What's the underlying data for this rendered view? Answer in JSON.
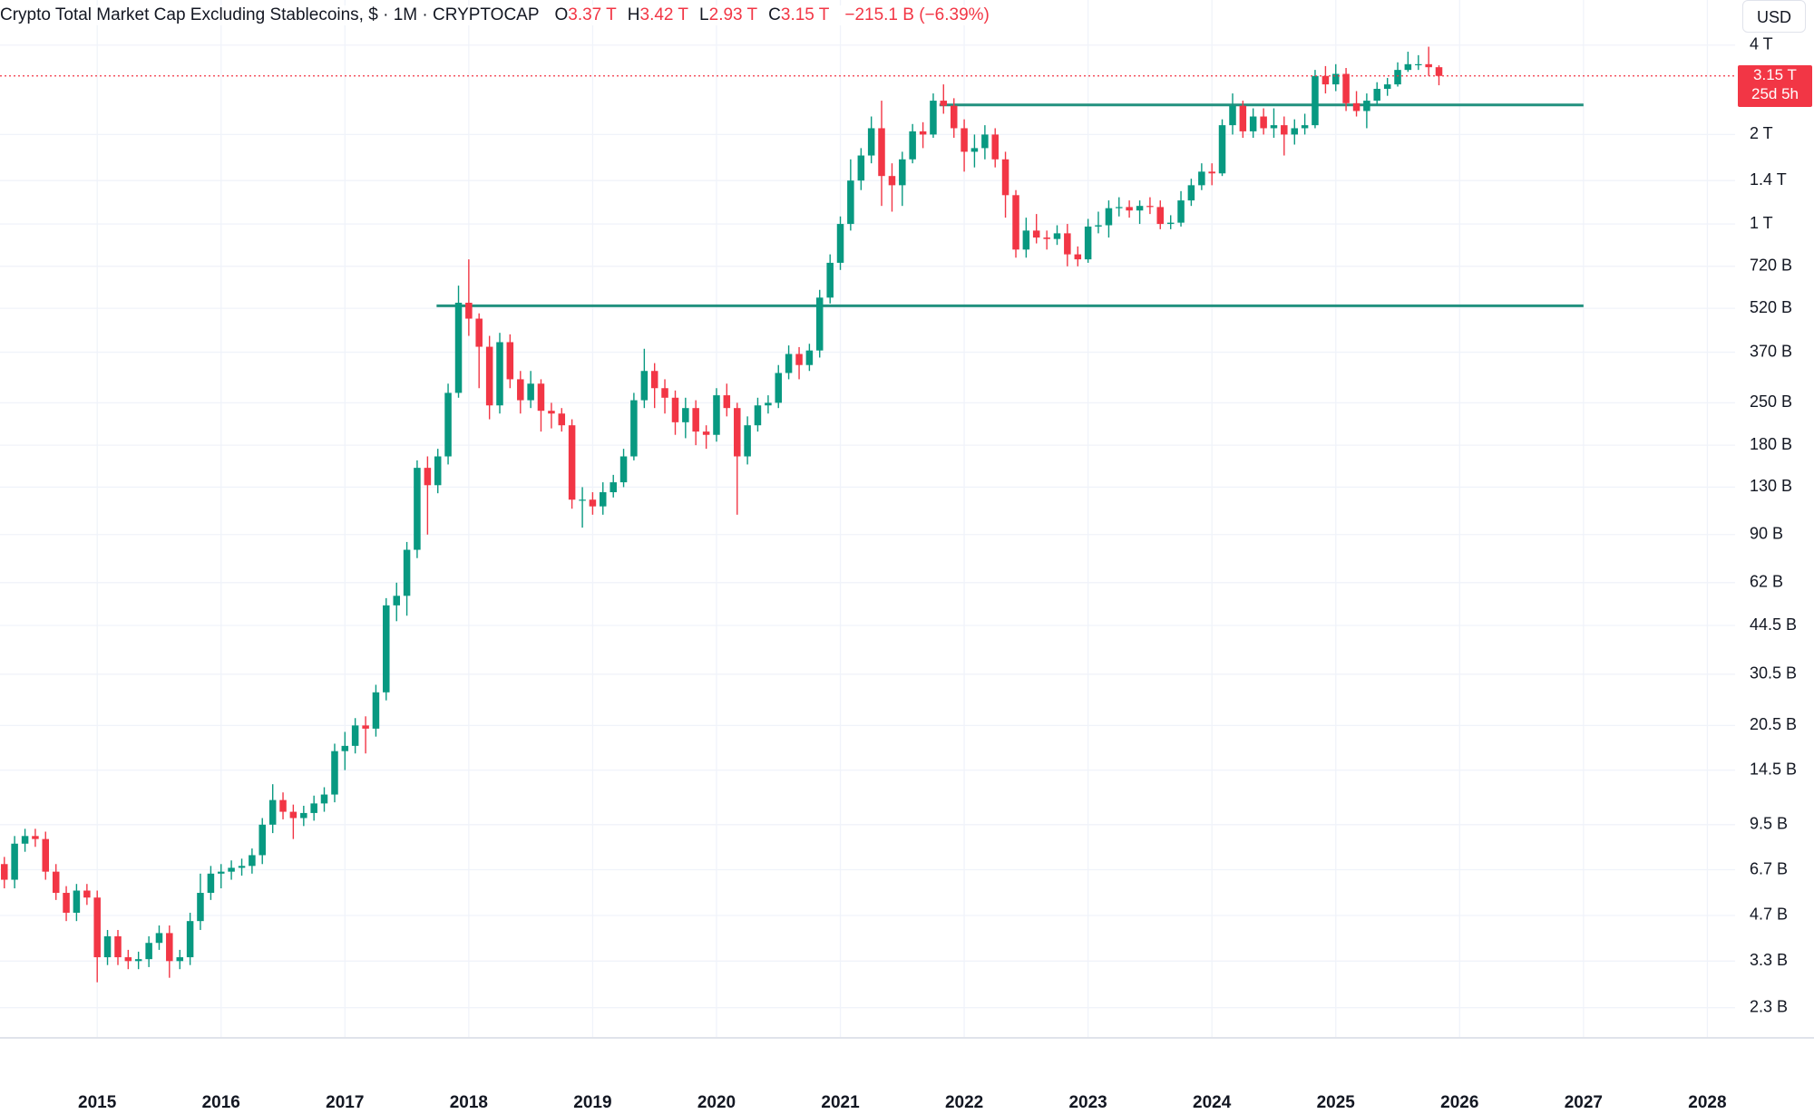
{
  "chart_data": {
    "type": "candlestick",
    "title": "Crypto Total Market Cap Excluding Stablecoins, $ · 1M · CRYPTOCAP",
    "ohlc": [
      {
        "key": "O",
        "value": "3.37 T"
      },
      {
        "key": "H",
        "value": "3.42 T"
      },
      {
        "key": "L",
        "value": "2.93 T"
      },
      {
        "key": "C",
        "value": "3.15 T"
      }
    ],
    "change": "−215.1 B (−6.39%)",
    "currency": "USD",
    "last_price_label": "3.15 T",
    "countdown": "25d 5h",
    "up_color": "#089981",
    "down_color": "#f23645",
    "level_color": "#22917f",
    "log_scale": true,
    "grid": true,
    "xlim": [
      2014.215,
      2028.224
    ],
    "xticks": [
      2015,
      2016,
      2017,
      2018,
      2019,
      2020,
      2021,
      2022,
      2023,
      2024,
      2025,
      2026,
      2027,
      2028
    ],
    "ylim": [
      1.82,
      5674
    ],
    "yticks": [
      {
        "value": 4000,
        "label": "4 T"
      },
      {
        "value": 2000,
        "label": "2 T"
      },
      {
        "value": 1400,
        "label": "1.4 T"
      },
      {
        "value": 1000,
        "label": "1 T"
      },
      {
        "value": 720,
        "label": "720 B"
      },
      {
        "value": 520,
        "label": "520 B"
      },
      {
        "value": 370,
        "label": "370 B"
      },
      {
        "value": 250,
        "label": "250 B"
      },
      {
        "value": 180,
        "label": "180 B"
      },
      {
        "value": 130,
        "label": "130 B"
      },
      {
        "value": 90,
        "label": "90 B"
      },
      {
        "value": 62,
        "label": "62 B"
      },
      {
        "value": 44.5,
        "label": "44.5 B"
      },
      {
        "value": 30.5,
        "label": "30.5 B"
      },
      {
        "value": 20.5,
        "label": "20.5 B"
      },
      {
        "value": 14.5,
        "label": "14.5 B"
      },
      {
        "value": 9.5,
        "label": "9.5 B"
      },
      {
        "value": 6.7,
        "label": "6.7 B"
      },
      {
        "value": 4.7,
        "label": "4.7 B"
      },
      {
        "value": 3.3,
        "label": "3.3 B"
      },
      {
        "value": 2.3,
        "label": "2.3 B"
      }
    ],
    "levels": [
      {
        "value": 530,
        "x": [
          2017.74,
          2027.0
        ]
      },
      {
        "value": 2515,
        "x": [
          2021.8,
          2027.0
        ]
      }
    ],
    "x": [
      2014.25,
      2014.333,
      2014.417,
      2014.5,
      2014.583,
      2014.667,
      2014.75,
      2014.833,
      2014.917,
      2015,
      2015.083,
      2015.167,
      2015.25,
      2015.333,
      2015.417,
      2015.5,
      2015.583,
      2015.667,
      2015.75,
      2015.833,
      2015.917,
      2016,
      2016.083,
      2016.167,
      2016.25,
      2016.333,
      2016.417,
      2016.5,
      2016.583,
      2016.667,
      2016.75,
      2016.833,
      2016.917,
      2017,
      2017.083,
      2017.167,
      2017.25,
      2017.333,
      2017.417,
      2017.5,
      2017.583,
      2017.667,
      2017.75,
      2017.833,
      2017.917,
      2018,
      2018.083,
      2018.167,
      2018.25,
      2018.333,
      2018.417,
      2018.5,
      2018.583,
      2018.667,
      2018.75,
      2018.833,
      2018.917,
      2019,
      2019.083,
      2019.167,
      2019.25,
      2019.333,
      2019.417,
      2019.5,
      2019.583,
      2019.667,
      2019.75,
      2019.833,
      2019.917,
      2020,
      2020.083,
      2020.167,
      2020.25,
      2020.333,
      2020.417,
      2020.5,
      2020.583,
      2020.667,
      2020.75,
      2020.833,
      2020.917,
      2021,
      2021.083,
      2021.167,
      2021.25,
      2021.333,
      2021.417,
      2021.5,
      2021.583,
      2021.667,
      2021.75,
      2021.833,
      2021.917,
      2022,
      2022.083,
      2022.167,
      2022.25,
      2022.333,
      2022.417,
      2022.5,
      2022.583,
      2022.667,
      2022.75,
      2022.833,
      2022.917,
      2023,
      2023.083,
      2023.167,
      2023.25,
      2023.333,
      2023.417,
      2023.5,
      2023.583,
      2023.667,
      2023.75,
      2023.833,
      2023.917,
      2024,
      2024.083,
      2024.167,
      2024.25,
      2024.333,
      2024.417,
      2024.5,
      2024.583,
      2024.667,
      2024.75,
      2024.833,
      2024.917,
      2025,
      2025.083,
      2025.167,
      2025.25,
      2025.333,
      2025.417,
      2025.5,
      2025.583,
      2025.667,
      2025.75,
      2025.833
    ],
    "open": [
      7,
      6.2,
      8.2,
      8.7,
      8.5,
      6.6,
      5.6,
      4.8,
      5.7,
      5.4,
      3.4,
      4,
      3.4,
      3.3,
      3.35,
      3.8,
      4.1,
      3.3,
      3.4,
      4.5,
      5.6,
      6.5,
      6.6,
      6.8,
      6.9,
      7.5,
      9.5,
      11.5,
      10.5,
      10,
      10.4,
      11.2,
      12,
      16.8,
      17.5,
      20.5,
      20,
      26.5,
      52,
      56,
      80,
      151,
      132,
      165,
      270,
      543,
      480,
      386,
      245,
      400,
      300,
      255,
      290,
      235,
      230,
      210,
      118,
      118,
      112,
      125,
      135,
      165,
      255,
      320,
      280,
      260,
      215,
      240,
      200,
      195,
      265,
      240,
      165,
      210,
      245,
      250,
      315,
      365,
      335,
      375,
      565,
      740,
      1000,
      1400,
      1700,
      2100,
      1450,
      1350,
      1650,
      2050,
      2000,
      2600,
      2500,
      2100,
      1750,
      1800,
      2000,
      1650,
      1250,
      820,
      950,
      900,
      890,
      930,
      790,
      760,
      980,
      990,
      1130,
      1140,
      1110,
      1150,
      1140,
      1000,
      1010,
      1200,
      1350,
      1500,
      1480,
      2150,
      2500,
      2050,
      2300,
      2100,
      2150,
      2000,
      2100,
      2150,
      3150,
      2950,
      3200,
      2550,
      2400,
      2600,
      2850,
      2950,
      3300,
      3450,
      3450,
      3370
    ],
    "high": [
      7.4,
      8.7,
      9.2,
      9.2,
      9,
      7,
      5.9,
      6,
      6,
      5.7,
      4.2,
      4.2,
      3.6,
      3.55,
      4,
      4.35,
      4.35,
      3.6,
      4.8,
      6.5,
      6.9,
      7,
      7.2,
      7.3,
      7.9,
      10,
      13,
      12.2,
      11.1,
      11,
      11.9,
      12.7,
      17.8,
      19.5,
      21.7,
      22,
      28.1,
      55,
      62,
      85,
      160,
      165,
      175,
      290,
      620,
      760,
      500,
      420,
      430,
      425,
      320,
      320,
      300,
      250,
      240,
      220,
      130,
      125,
      135,
      143,
      175,
      270,
      380,
      340,
      300,
      275,
      260,
      255,
      210,
      280,
      290,
      250,
      225,
      260,
      265,
      335,
      390,
      385,
      395,
      600,
      790,
      1060,
      1650,
      1800,
      2300,
      2600,
      1600,
      1750,
      2170,
      2200,
      2750,
      2950,
      2650,
      2250,
      2000,
      2150,
      2100,
      1750,
      1300,
      1050,
      1080,
      950,
      990,
      1000,
      840,
      1040,
      1100,
      1200,
      1230,
      1200,
      1200,
      1230,
      1200,
      1070,
      1290,
      1420,
      1600,
      1600,
      2250,
      2750,
      2600,
      2450,
      2450,
      2450,
      2300,
      2250,
      2350,
      3300,
      3400,
      3450,
      3350,
      2800,
      2750,
      3000,
      3100,
      3500,
      3800,
      3700,
      3950,
      3420
    ],
    "low": [
      5.8,
      5.8,
      7.7,
      8,
      6.2,
      5.3,
      4.5,
      4.5,
      5.1,
      2.8,
      3.2,
      3.2,
      3.1,
      3.1,
      3.15,
      3.6,
      2.9,
      3.1,
      3.2,
      4.2,
      5.3,
      5.8,
      6.2,
      6.4,
      6.5,
      7,
      8.9,
      9.9,
      8.5,
      9.4,
      9.8,
      10.5,
      11.3,
      14.5,
      16.5,
      16.5,
      18.8,
      24.9,
      46,
      48,
      75,
      90,
      124,
      155,
      260,
      420,
      280,
      220,
      230,
      280,
      230,
      240,
      200,
      205,
      200,
      110,
      95,
      105,
      105,
      120,
      130,
      160,
      240,
      240,
      230,
      195,
      190,
      180,
      175,
      185,
      225,
      105,
      155,
      200,
      230,
      240,
      300,
      300,
      320,
      355,
      540,
      700,
      950,
      1300,
      1600,
      1150,
      1100,
      1150,
      1600,
      1800,
      1950,
      2350,
      1950,
      1500,
      1550,
      1650,
      1550,
      1050,
      770,
      770,
      860,
      820,
      850,
      720,
      720,
      740,
      930,
      900,
      1060,
      1050,
      1000,
      1080,
      960,
      960,
      980,
      1150,
      1300,
      1350,
      1450,
      2000,
      1950,
      1950,
      2000,
      1950,
      1700,
      1850,
      2000,
      2100,
      2750,
      2800,
      2400,
      2300,
      2100,
      2500,
      2700,
      2900,
      3250,
      3300,
      3150,
      2930
    ],
    "close": [
      6.2,
      8.2,
      8.7,
      8.5,
      6.6,
      5.6,
      4.8,
      5.7,
      5.4,
      3.4,
      4,
      3.4,
      3.3,
      3.35,
      3.8,
      4.1,
      3.3,
      3.4,
      4.5,
      5.6,
      6.5,
      6.6,
      6.8,
      6.9,
      7.5,
      9.5,
      11.5,
      10.5,
      10,
      10.4,
      11.2,
      12,
      16.8,
      17.5,
      20.5,
      20,
      26.5,
      52,
      56,
      80,
      151,
      132,
      165,
      270,
      543,
      480,
      386,
      245,
      400,
      300,
      255,
      290,
      235,
      230,
      210,
      118,
      118,
      112,
      125,
      135,
      165,
      255,
      320,
      280,
      260,
      215,
      240,
      200,
      195,
      265,
      240,
      165,
      210,
      245,
      250,
      315,
      365,
      335,
      375,
      565,
      740,
      1000,
      1400,
      1700,
      2100,
      1450,
      1350,
      1650,
      2050,
      2000,
      2600,
      2500,
      2100,
      1750,
      1800,
      2000,
      1650,
      1250,
      820,
      950,
      900,
      890,
      930,
      790,
      760,
      980,
      990,
      1130,
      1140,
      1110,
      1150,
      1140,
      1000,
      1010,
      1200,
      1350,
      1500,
      1480,
      2150,
      2500,
      2050,
      2300,
      2100,
      2150,
      2000,
      2100,
      2150,
      3150,
      2950,
      3200,
      2550,
      2400,
      2600,
      2850,
      2950,
      3300,
      3450,
      3450,
      3370,
      3150
    ]
  }
}
